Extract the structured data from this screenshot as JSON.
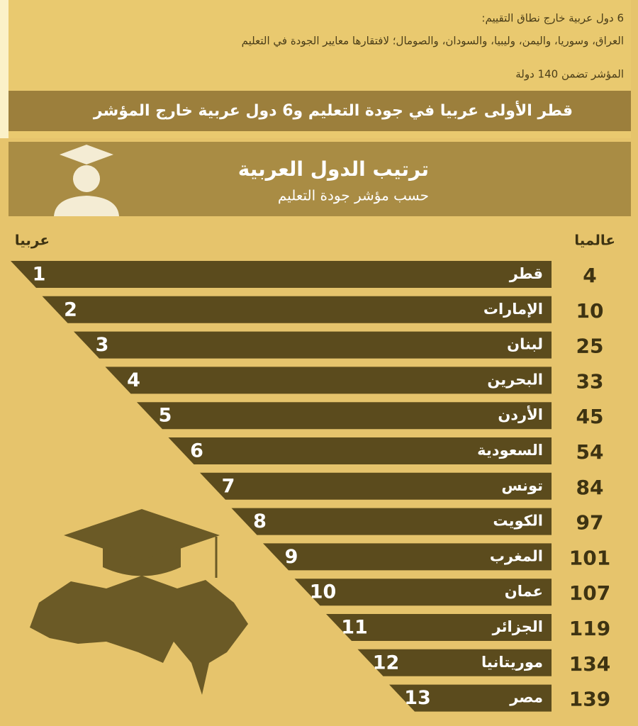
{
  "notes": {
    "line1": "6 دول عربية خارج نطاق التقييم:",
    "line2": "العراق، وسوريا، واليمن، وليبيا، والسودان، والصومال؛ لافتقارها معايير الجودة في التعليم",
    "line3": "المؤشر تضمن 140 دولة"
  },
  "banner": "قطر الأولى عربيا في جودة التعليم و6 دول عربية خارج المؤشر",
  "header": {
    "title": "ترتيب الدول العربية",
    "subtitle": "حسب مؤشر جودة التعليم"
  },
  "columns": {
    "arab": "عربيا",
    "world": "عالميا"
  },
  "rows": [
    [
      "1",
      "قطر",
      "4"
    ],
    [
      "2",
      "الإمارات",
      "10"
    ],
    [
      "3",
      "لبنان",
      "25"
    ],
    [
      "4",
      "البحرين",
      "33"
    ],
    [
      "5",
      "الأردن",
      "45"
    ],
    [
      "6",
      "السعودية",
      "54"
    ],
    [
      "7",
      "تونس",
      "84"
    ],
    [
      "8",
      "الكويت",
      "97"
    ],
    [
      "9",
      "المغرب",
      "101"
    ],
    [
      "10",
      "عمان",
      "107"
    ],
    [
      "11",
      "الجزائر",
      "119"
    ],
    [
      "12",
      "موريتانيا",
      "134"
    ],
    [
      "13",
      "مصر",
      "139"
    ]
  ]
}
